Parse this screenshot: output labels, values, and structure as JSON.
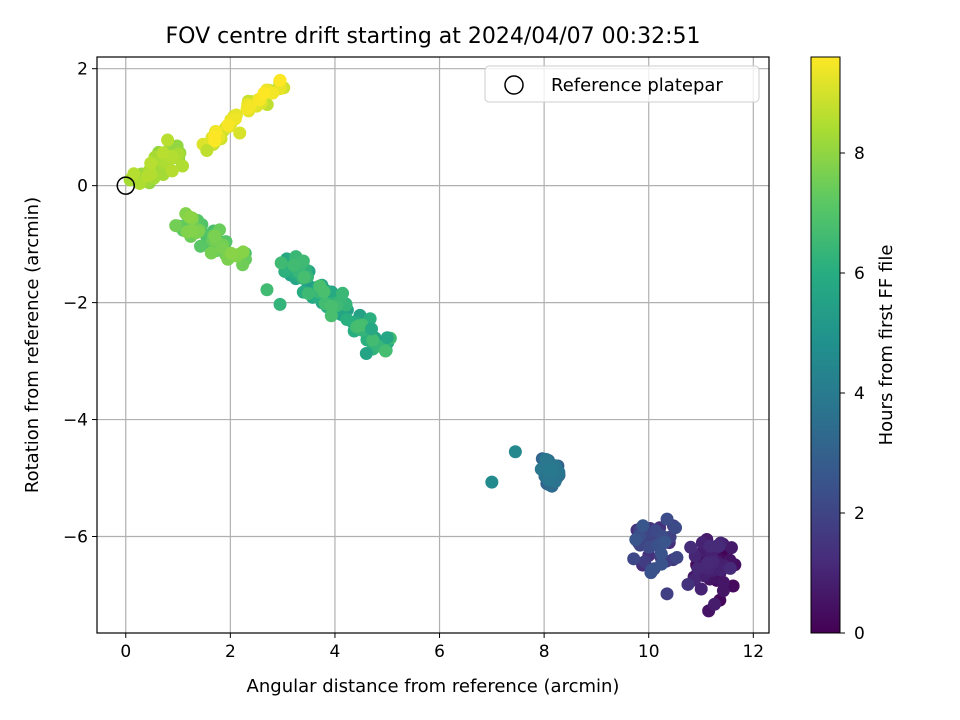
{
  "chart_data": {
    "type": "scatter",
    "title": "FOV centre drift starting at 2024/04/07 00:32:51",
    "xlabel": "Angular distance from reference (arcmin)",
    "ylabel": "Rotation from reference (arcmin)",
    "xlim": [
      -0.55,
      12.3
    ],
    "ylim": [
      -7.65,
      2.2
    ],
    "xticks": [
      0,
      2,
      4,
      6,
      8,
      10,
      12
    ],
    "yticks": [
      2,
      0,
      -2,
      -4,
      -6
    ],
    "grid": true,
    "legend_position": "top-right",
    "legend": [
      {
        "label": "Reference platepar",
        "marker": "open-circle"
      }
    ],
    "reference_point": {
      "x": 0,
      "y": 0
    },
    "colorbar": {
      "label": "Hours from first FF file",
      "colormap": "viridis",
      "range": [
        0,
        9.6
      ],
      "ticks": [
        0,
        2,
        4,
        6,
        8
      ]
    },
    "clusters": [
      {
        "t": [
          0.0,
          1.2
        ],
        "cx": 11.2,
        "cy": -6.55,
        "sx": 0.22,
        "sy": 0.35,
        "n": 60
      },
      {
        "t": [
          1.2,
          2.6
        ],
        "cx": 10.15,
        "cy": -6.15,
        "sx": 0.3,
        "sy": 0.3,
        "n": 45
      },
      {
        "t": [
          3.0,
          3.9
        ],
        "cx": 8.12,
        "cy": -4.9,
        "sx": 0.12,
        "sy": 0.14,
        "n": 35
      },
      {
        "t": [
          5.4,
          6.8
        ],
        "line": [
          [
            3.0,
            -1.3
          ],
          [
            5.0,
            -2.8
          ]
        ],
        "spread": 0.15,
        "n": 80
      },
      {
        "t": [
          6.8,
          7.9
        ],
        "line": [
          [
            1.0,
            -0.55
          ],
          [
            2.3,
            -1.3
          ]
        ],
        "spread": 0.12,
        "n": 55
      },
      {
        "t": [
          8.0,
          8.6
        ],
        "line": [
          [
            0.1,
            0.05
          ],
          [
            1.0,
            0.55
          ]
        ],
        "spread": 0.15,
        "n": 45
      },
      {
        "t": [
          8.6,
          9.6
        ],
        "line": [
          [
            1.6,
            0.75
          ],
          [
            3.0,
            1.75
          ]
        ],
        "spread": 0.12,
        "n": 45
      }
    ],
    "points": [
      {
        "x": 7.45,
        "y": -4.55,
        "t": 4.5
      },
      {
        "x": 7.0,
        "y": -5.07,
        "t": 4.6
      },
      {
        "x": 10.35,
        "y": -6.98,
        "t": 1.8
      },
      {
        "x": 10.75,
        "y": -6.82,
        "t": 1.4
      },
      {
        "x": 2.95,
        "y": -2.03,
        "t": 6.3
      },
      {
        "x": 2.7,
        "y": -1.78,
        "t": 6.6
      },
      {
        "x": 0.8,
        "y": 0.78,
        "t": 8.6
      },
      {
        "x": 1.55,
        "y": 0.6,
        "t": 8.7
      },
      {
        "x": 2.95,
        "y": 1.8,
        "t": 9.6
      },
      {
        "x": 4.6,
        "y": -2.87,
        "t": 5.6
      },
      {
        "x": 5.0,
        "y": -2.6,
        "t": 5.7
      },
      {
        "x": 4.7,
        "y": -2.45,
        "t": 5.8
      }
    ]
  }
}
